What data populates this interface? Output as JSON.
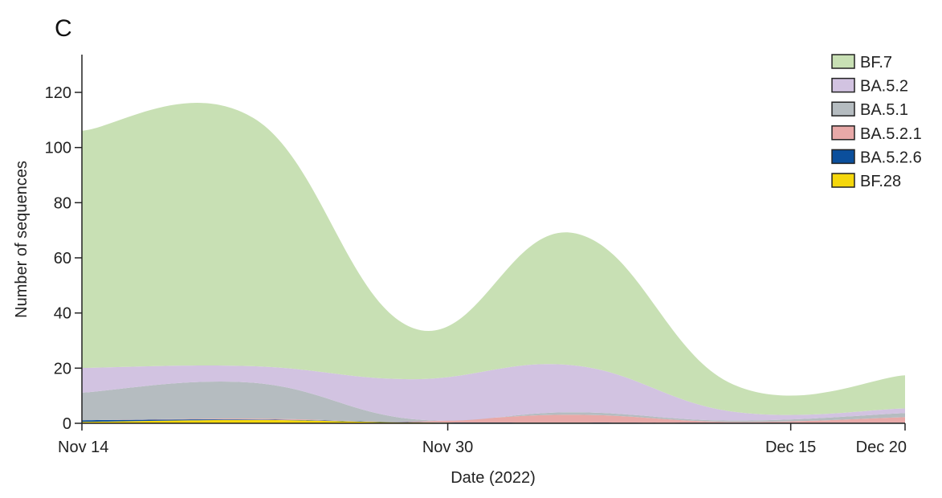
{
  "panel_label": "C",
  "chart_data": {
    "type": "area",
    "stacked": true,
    "xlabel": "Date (2022)",
    "ylabel": "Number of sequences",
    "x_ticks": [
      {
        "day": 14,
        "label": "Nov 14"
      },
      {
        "day": 30,
        "label": "Nov 30"
      },
      {
        "day": 45,
        "label": "Dec 15"
      },
      {
        "day": 50,
        "label": "Dec 20"
      }
    ],
    "y_ticks": [
      0,
      20,
      40,
      60,
      80,
      100,
      120
    ],
    "ylim": [
      0,
      135
    ],
    "xlim": [
      14,
      50
    ],
    "x": [
      14,
      21.5,
      28.5,
      35.5,
      42.5,
      50
    ],
    "series": [
      {
        "name": "BF.28",
        "color": "#f5d70c",
        "values": [
          0.5,
          1.2,
          0.3,
          0.2,
          0.1,
          0.1
        ]
      },
      {
        "name": "BA.5.2.6",
        "color": "#0b4f9c",
        "values": [
          0.6,
          0.2,
          0.1,
          0.1,
          0.1,
          0.1
        ]
      },
      {
        "name": "BA.5.2.1",
        "color": "#e8a9a8",
        "values": [
          0,
          0.3,
          0.3,
          2.8,
          0.3,
          2
        ]
      },
      {
        "name": "BA.5.1",
        "color": "#b5bcc0",
        "values": [
          10,
          13,
          0.8,
          0.9,
          0.5,
          1.5
        ]
      },
      {
        "name": "BA.5.2",
        "color": "#d2c3e1",
        "values": [
          9,
          6,
          14.5,
          17,
          3.2,
          1.7
        ]
      },
      {
        "name": "BF.7",
        "color": "#c8e0b4",
        "values": [
          86,
          90,
          18.5,
          48,
          9.8,
          12
        ]
      }
    ],
    "legend_position": "top-right",
    "legend_order": [
      "BF.7",
      "BA.5.2",
      "BA.5.1",
      "BA.5.2.1",
      "BA.5.2.6",
      "BF.28"
    ],
    "grid": false
  }
}
